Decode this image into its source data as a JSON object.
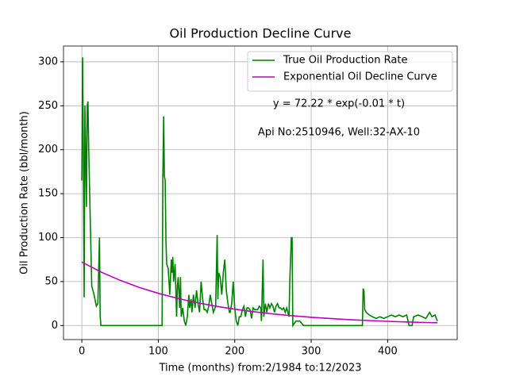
{
  "chart_data": {
    "type": "line",
    "title": "Oil Production Decline Curve",
    "xlabel": "Time (months) from:2/1984 to:12/2023",
    "ylabel": "Oil Production Rate (bbl/month)",
    "annotations": [
      "y = 72.22 * exp(-0.01 * t)",
      "Api No:2510946, Well:32-AX-10"
    ],
    "xlim": [
      -24,
      491
    ],
    "ylim": [
      -16,
      318
    ],
    "xticks": [
      0,
      100,
      200,
      300,
      400
    ],
    "yticks": [
      0,
      50,
      100,
      150,
      200,
      250,
      300
    ],
    "grid": true,
    "legend": "upper right",
    "series": [
      {
        "name": "True Oil Production Rate",
        "color": "#008000",
        "x": [
          0,
          1,
          2,
          3,
          4,
          5,
          6,
          7,
          8,
          9,
          11,
          13,
          16,
          19,
          21,
          23,
          24,
          25,
          105,
          106,
          107,
          108,
          109,
          110,
          111,
          113,
          115,
          117,
          118,
          119,
          120,
          122,
          124,
          125,
          126,
          128,
          129,
          130,
          132,
          134,
          136,
          138,
          140,
          141,
          143,
          144,
          146,
          148,
          150,
          152,
          154,
          156,
          158,
          160,
          162,
          164,
          166,
          168,
          170,
          172,
          175,
          177,
          178,
          179,
          181,
          183,
          185,
          187,
          189,
          191,
          193,
          194,
          196,
          198,
          200,
          202,
          204,
          206,
          208,
          210,
          212,
          214,
          216,
          218,
          220,
          222,
          224,
          226,
          228,
          230,
          232,
          234,
          235,
          237,
          238,
          240,
          242,
          244,
          246,
          248,
          250,
          252,
          254,
          256,
          258,
          260,
          262,
          264,
          266,
          268,
          271,
          272,
          274,
          275,
          276,
          280,
          285,
          290,
          367,
          368,
          369,
          370,
          372,
          376,
          380,
          385,
          390,
          395,
          400,
          405,
          410,
          415,
          420,
          425,
          428,
          432,
          434,
          440,
          445,
          450,
          455,
          458,
          462,
          465
        ],
        "values": [
          165,
          305,
          200,
          32,
          250,
          200,
          135,
          250,
          255,
          200,
          120,
          45,
          35,
          22,
          25,
          100,
          10,
          0,
          0,
          170,
          238,
          170,
          165,
          95,
          70,
          65,
          35,
          75,
          60,
          78,
          50,
          70,
          10,
          45,
          55,
          20,
          55,
          10,
          20,
          5,
          0,
          10,
          35,
          20,
          30,
          15,
          35,
          20,
          40,
          25,
          15,
          50,
          30,
          18,
          18,
          15,
          22,
          35,
          25,
          15,
          22,
          103,
          30,
          60,
          55,
          35,
          60,
          75,
          40,
          25,
          15,
          15,
          25,
          50,
          20,
          5,
          0,
          10,
          10,
          18,
          22,
          10,
          20,
          20,
          18,
          8,
          20,
          18,
          18,
          18,
          22,
          20,
          5,
          75,
          10,
          25,
          15,
          25,
          20,
          25,
          22,
          15,
          22,
          25,
          20,
          20,
          18,
          20,
          15,
          20,
          10,
          50,
          100,
          100,
          0,
          5,
          5,
          0,
          0,
          42,
          40,
          18,
          15,
          12,
          10,
          8,
          10,
          8,
          10,
          12,
          10,
          12,
          10,
          12,
          0,
          0,
          10,
          12,
          10,
          8,
          15,
          10,
          12,
          5
        ]
      },
      {
        "name": "Exponential Oil Decline Curve",
        "color": "#bf00bf",
        "x": [
          0,
          25,
          50,
          75,
          100,
          125,
          150,
          175,
          200,
          225,
          250,
          275,
          300,
          325,
          350,
          375,
          400,
          425,
          450,
          465
        ],
        "values": [
          72.2,
          60.9,
          51.4,
          43.3,
          36.6,
          30.9,
          26.1,
          22.0,
          18.6,
          15.7,
          13.2,
          11.2,
          9.4,
          8.0,
          6.7,
          5.7,
          4.8,
          4.0,
          3.4,
          3.1
        ]
      }
    ]
  }
}
